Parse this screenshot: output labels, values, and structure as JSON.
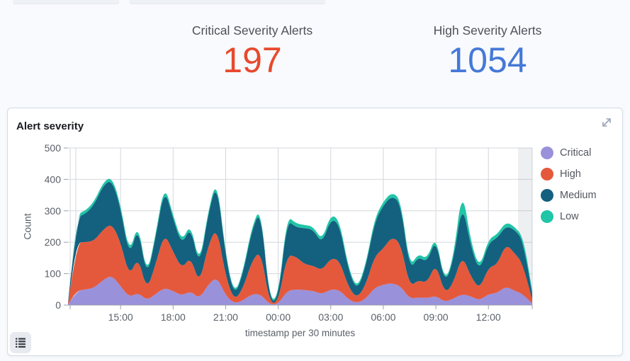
{
  "stats": [
    {
      "label": "Critical Severity Alerts",
      "value": "197",
      "color": "#E8492D"
    },
    {
      "label": "High Severity Alerts",
      "value": "1054",
      "color": "#4579D8"
    }
  ],
  "panel": {
    "title": "Alert severity"
  },
  "icons": {
    "expand": "diagonal-expand-arrow",
    "legend_toggle": "bulleted-list"
  },
  "chart_data": {
    "type": "area",
    "stacked": true,
    "title": "Alert severity",
    "xlabel": "timestamp per 30 minutes",
    "ylabel": "Count",
    "ylim": [
      0,
      500
    ],
    "y_ticks": [
      0,
      100,
      200,
      300,
      400,
      500
    ],
    "x_tick_labels": [
      "15:00",
      "18:00",
      "21:00",
      "00:00",
      "03:00",
      "06:00",
      "09:00",
      "12:00"
    ],
    "x_tick_indices": [
      6,
      12,
      18,
      24,
      30,
      36,
      42,
      48
    ],
    "x_interval": "30m",
    "legend_position": "right",
    "grid": true,
    "partial_bucket_band_right": true,
    "series": [
      {
        "name": "Critical",
        "color": "#9A91DB",
        "values": [
          2,
          45,
          50,
          55,
          80,
          95,
          60,
          25,
          40,
          15,
          35,
          55,
          45,
          30,
          45,
          20,
          65,
          90,
          30,
          5,
          15,
          35,
          35,
          2,
          3,
          45,
          50,
          48,
          45,
          35,
          50,
          48,
          18,
          6,
          20,
          55,
          65,
          70,
          60,
          20,
          25,
          22,
          30,
          10,
          20,
          35,
          28,
          15,
          35,
          38,
          60,
          45,
          35,
          5
        ]
      },
      {
        "name": "High",
        "color": "#E4593C",
        "values": [
          3,
          155,
          150,
          150,
          160,
          165,
          140,
          65,
          115,
          30,
          95,
          175,
          125,
          85,
          110,
          45,
          125,
          160,
          60,
          8,
          40,
          105,
          140,
          4,
          6,
          115,
          105,
          82,
          80,
          75,
          100,
          95,
          40,
          15,
          45,
          100,
          115,
          148,
          135,
          38,
          55,
          48,
          105,
          25,
          50,
          125,
          62,
          35,
          85,
          90,
          135,
          120,
          95,
          12
        ]
      },
      {
        "name": "Medium",
        "color": "#14607F",
        "values": [
          3,
          80,
          90,
          115,
          140,
          140,
          110,
          60,
          100,
          38,
          85,
          145,
          105,
          75,
          97,
          52,
          100,
          145,
          62,
          12,
          48,
          100,
          130,
          5,
          9,
          112,
          93,
          115,
          115,
          85,
          125,
          115,
          54,
          23,
          57,
          108,
          138,
          130,
          128,
          52,
          75,
          65,
          80,
          30,
          70,
          170,
          95,
          55,
          78,
          85,
          57,
          75,
          75,
          18
        ]
      },
      {
        "name": "Low",
        "color": "#21C5A7",
        "values": [
          2,
          10,
          10,
          10,
          10,
          10,
          10,
          10,
          10,
          7,
          10,
          12,
          10,
          10,
          10,
          8,
          10,
          10,
          8,
          5,
          7,
          10,
          10,
          4,
          7,
          13,
          12,
          10,
          10,
          10,
          15,
          12,
          8,
          6,
          8,
          12,
          12,
          12,
          12,
          10,
          10,
          10,
          10,
          5,
          10,
          45,
          15,
          10,
          12,
          12,
          13,
          10,
          10,
          10
        ]
      }
    ]
  }
}
